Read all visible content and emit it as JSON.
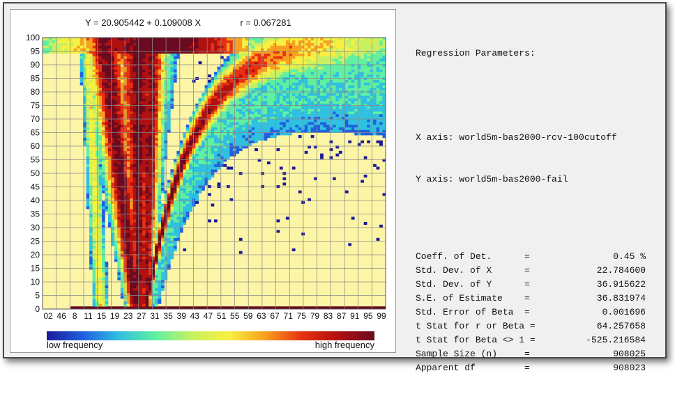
{
  "chart_data": {
    "type": "heatmap",
    "title_equation": "Y = 20.905442 + 0.109008 X",
    "title_r": "r = 0.067281",
    "x_range": [
      0,
      100
    ],
    "y_range": [
      0,
      100
    ],
    "x_tick_labels": [
      "02",
      "46",
      "8",
      "11",
      "15",
      "19",
      "23",
      "27",
      "31",
      "35",
      "39",
      "43",
      "47",
      "51",
      "55",
      "59",
      "63",
      "67",
      "71",
      "75",
      "79",
      "83",
      "87",
      "91",
      "95",
      "99"
    ],
    "y_tick_labels": [
      "0",
      "5",
      "10",
      "15",
      "20",
      "25",
      "30",
      "35",
      "40",
      "45",
      "50",
      "55",
      "60",
      "65",
      "70",
      "75",
      "80",
      "85",
      "90",
      "95",
      "100"
    ],
    "grid": true,
    "background_color": "#fdf5a6",
    "colorbar": {
      "low_label": "low frequency",
      "high_label": "high frequency",
      "colors": [
        "#1a1a9a",
        "#2060e0",
        "#30c0e0",
        "#60f0a0",
        "#c8f060",
        "#f8f040",
        "#f8a020",
        "#e83010",
        "#b01010",
        "#6a0a20"
      ]
    }
  },
  "params": {
    "title": "Regression Parameters:",
    "x_axis": "X axis: world5m-bas2000-rcv-100cutoff",
    "y_axis": "Y axis: world5m-bas2000-fail",
    "stats": [
      {
        "label": "Coeff. of Det.      =",
        "value": "0.45 %"
      },
      {
        "label": "Std. Dev. of X      =",
        "value": "22.784600"
      },
      {
        "label": "Std. Dev. of Y      =",
        "value": "36.915622"
      },
      {
        "label": "S.E. of Estimate    =",
        "value": "36.831974"
      },
      {
        "label": "Std. Error of Beta  =",
        "value": "0.001696"
      },
      {
        "label": "t Stat for r or Beta =",
        "value": "64.257658"
      },
      {
        "label": "t Stat for Beta <> 1 =",
        "value": "-525.216584"
      },
      {
        "label": "Sample Size (n)     =",
        "value": "908025"
      },
      {
        "label": "Apparent df         =",
        "value": "908023"
      }
    ]
  }
}
